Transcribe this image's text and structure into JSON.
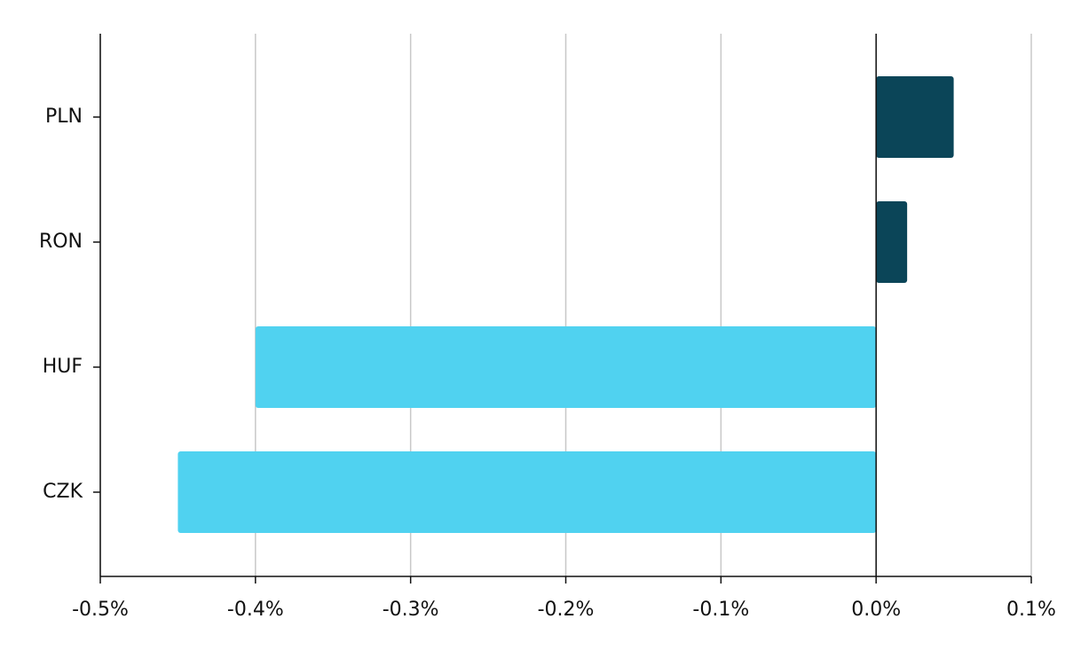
{
  "chart_data": {
    "type": "bar",
    "orientation": "horizontal",
    "categories": [
      "PLN",
      "RON",
      "HUF",
      "CZK"
    ],
    "values": [
      0.05,
      0.02,
      -0.4,
      -0.45
    ],
    "colors": [
      "#0b4558",
      "#0b4558",
      "#50d2f0",
      "#50d2f0"
    ],
    "xlim": [
      -0.5,
      0.1
    ],
    "xticks": [
      {
        "value": -0.5,
        "label": "-0.5%"
      },
      {
        "value": -0.4,
        "label": "-0.4%"
      },
      {
        "value": -0.3,
        "label": "-0.3%"
      },
      {
        "value": -0.2,
        "label": "-0.2%"
      },
      {
        "value": -0.1,
        "label": "-0.1%"
      },
      {
        "value": 0,
        "label": "0.0%"
      },
      {
        "value": 0.1,
        "label": "0.1%"
      }
    ],
    "grid": true
  }
}
